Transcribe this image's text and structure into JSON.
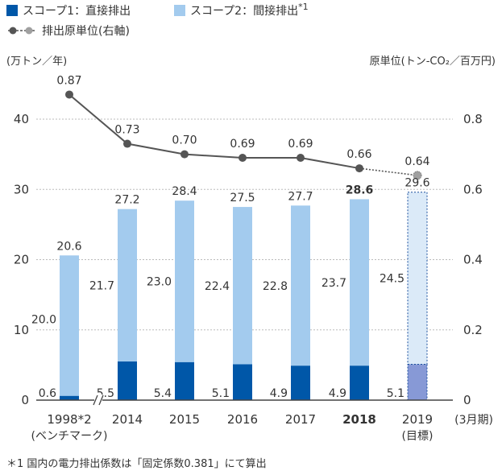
{
  "legend": {
    "scope1": "スコープ1：直接排出",
    "scope2": "スコープ2：間接排出",
    "scope2_note": "*1",
    "intensity": "排出原単位(右軸)"
  },
  "footnote": "＊1 国内の電力排出係数は「固定係数0.381」にて算出",
  "colors": {
    "scope1": "#0057a8",
    "scope2": "#a3cbee",
    "target_scope1": "#8799d6",
    "target_scope2": "#dbeaf8",
    "line": "#555555",
    "target_marker": "#a0a0a0"
  },
  "chart_data": {
    "type": "bar",
    "stacked": true,
    "ylabel_left": "(万トン／年)",
    "ylabel_right": "原単位(トン-CO₂／百万円)",
    "x_unit": "(3月期)",
    "ylim": [
      0,
      45
    ],
    "y_ticks": [
      0,
      10,
      20,
      30,
      40
    ],
    "y2lim": [
      0,
      0.9
    ],
    "y2_ticks": [
      "0",
      "0.2",
      "0.4",
      "0.6",
      "0.8"
    ],
    "categories": [
      {
        "label": "1998*2",
        "sub": "(ベンチマーク)",
        "bold": false,
        "target": false
      },
      {
        "label": "2014",
        "sub": "",
        "bold": false,
        "target": false
      },
      {
        "label": "2015",
        "sub": "",
        "bold": false,
        "target": false
      },
      {
        "label": "2016",
        "sub": "",
        "bold": false,
        "target": false
      },
      {
        "label": "2017",
        "sub": "",
        "bold": false,
        "target": false
      },
      {
        "label": "2018",
        "sub": "",
        "bold": true,
        "target": false
      },
      {
        "label": "2019",
        "sub": "(目標)",
        "bold": false,
        "target": true
      }
    ],
    "series": [
      {
        "name": "スコープ1：直接排出",
        "values": [
          0.6,
          5.5,
          5.4,
          5.1,
          4.9,
          4.9,
          5.1
        ],
        "labels": [
          "0.6",
          "5.5",
          "5.4",
          "5.1",
          "4.9",
          "4.9",
          "5.1"
        ]
      },
      {
        "name": "スコープ2：間接排出",
        "values": [
          20.0,
          21.7,
          23.0,
          22.4,
          22.8,
          23.7,
          24.5
        ],
        "labels": [
          "20.0",
          "21.7",
          "23.0",
          "22.4",
          "22.8",
          "23.7",
          "24.5"
        ]
      }
    ],
    "totals": [
      "20.6",
      "27.2",
      "28.4",
      "27.5",
      "27.7",
      "28.6",
      "29.6"
    ],
    "intensity": {
      "name": "排出原単位(右軸)",
      "values": [
        0.87,
        0.73,
        0.7,
        0.69,
        0.69,
        0.66,
        0.64
      ],
      "labels": [
        "0.87",
        "0.73",
        "0.70",
        "0.69",
        "0.69",
        "0.66",
        "0.64"
      ]
    }
  }
}
